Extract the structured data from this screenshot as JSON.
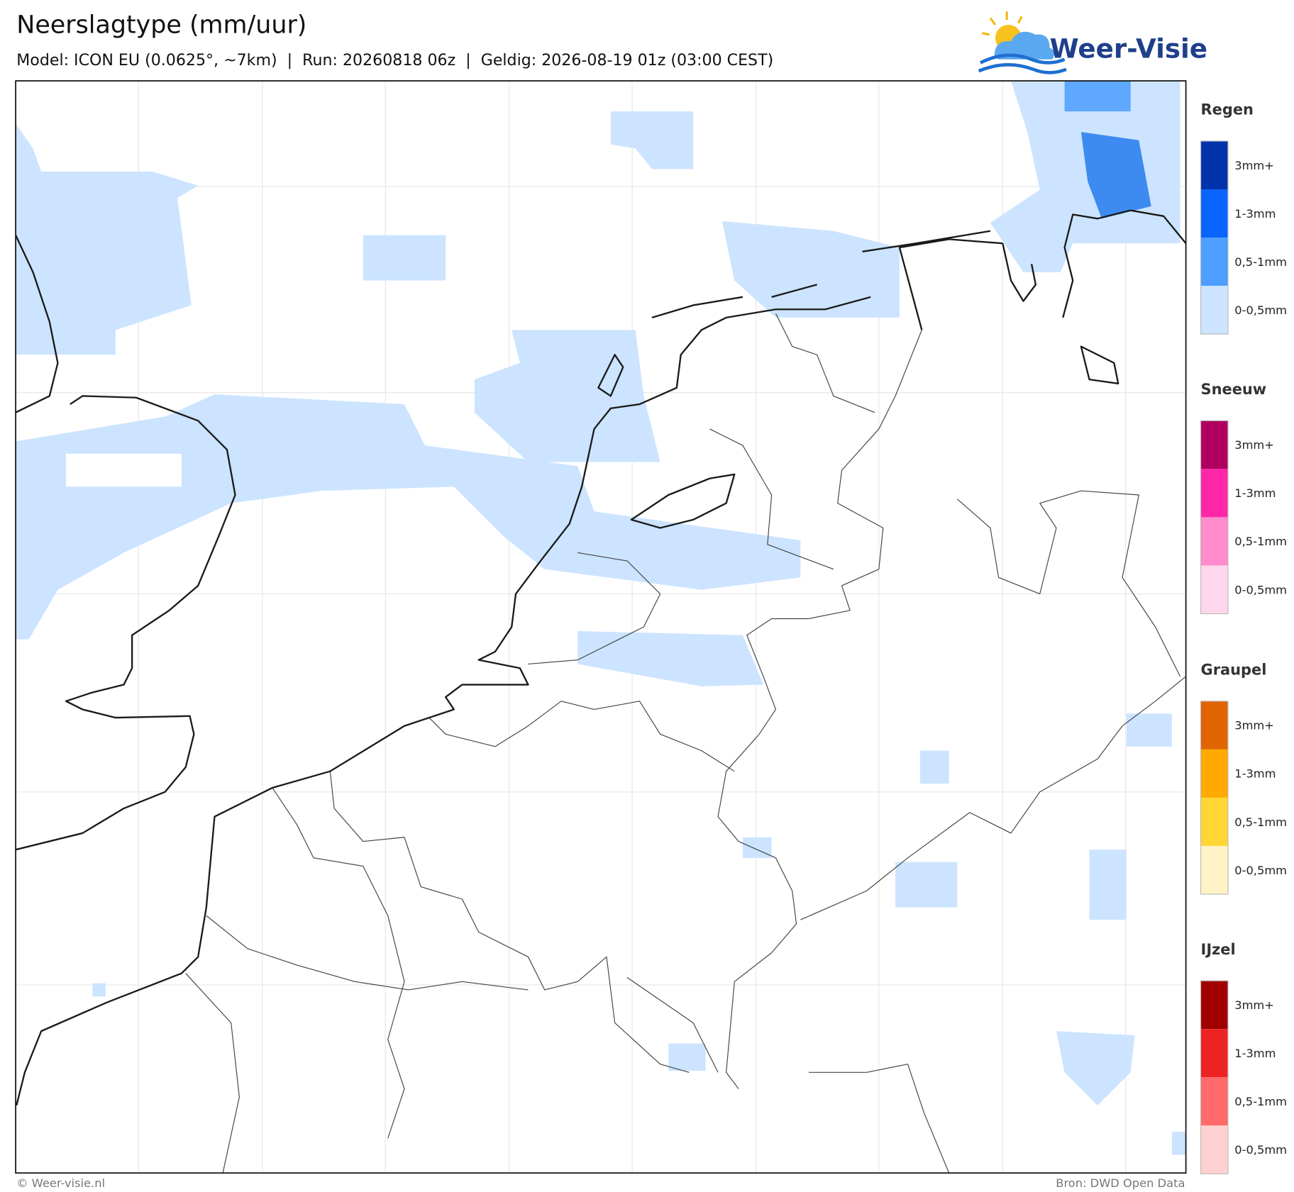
{
  "header": {
    "title": "Neerslagtype (mm/uur)",
    "subtitle": "Model: ICON EU (0.0625°, ~7km)  |  Run: 20260818 06z  |  Geldig: 2026-08-19 01z (03:00 CEST)",
    "logo": "Weer-Visie"
  },
  "legend": [
    {
      "name": "Regen",
      "items": [
        {
          "label": "3mm+",
          "color": "#0033aa"
        },
        {
          "label": "1-3mm",
          "color": "#0a64ff"
        },
        {
          "label": "0,5-1mm",
          "color": "#4d9eff"
        },
        {
          "label": "0-0,5mm",
          "color": "#cce4ff"
        }
      ]
    },
    {
      "name": "Sneeuw",
      "items": [
        {
          "label": "3mm+",
          "color": "#b0005f"
        },
        {
          "label": "1-3mm",
          "color": "#ff26a8"
        },
        {
          "label": "0,5-1mm",
          "color": "#ff8ccc"
        },
        {
          "label": "0-0,5mm",
          "color": "#ffd6ec"
        }
      ]
    },
    {
      "name": "Graupel",
      "items": [
        {
          "label": "3mm+",
          "color": "#e06400"
        },
        {
          "label": "1-3mm",
          "color": "#ffaa00"
        },
        {
          "label": "0,5-1mm",
          "color": "#ffd633"
        },
        {
          "label": "0-0,5mm",
          "color": "#fff2c4"
        }
      ]
    },
    {
      "name": "IJzel",
      "items": [
        {
          "label": "3mm+",
          "color": "#a00000"
        },
        {
          "label": "1-3mm",
          "color": "#ee2222"
        },
        {
          "label": "0,5-1mm",
          "color": "#ff6a6a"
        },
        {
          "label": "0-0,5mm",
          "color": "#ffd0d0"
        }
      ]
    }
  ],
  "footer": {
    "left": "© Weer-visie.nl",
    "right": "Bron: DWD Open Data"
  }
}
